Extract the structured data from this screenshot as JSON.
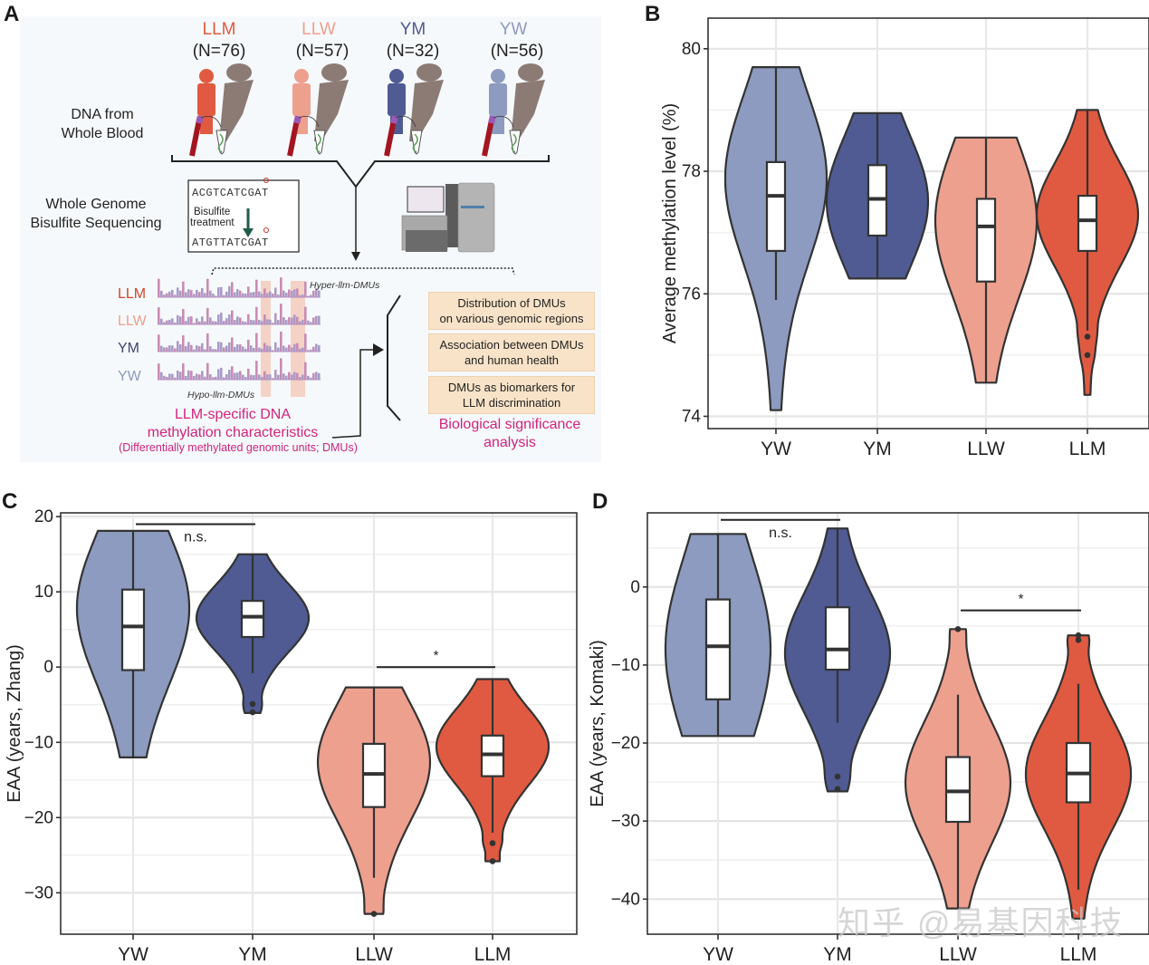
{
  "figure": {
    "panel_letters": {
      "a": "A",
      "b": "B",
      "c": "C",
      "d": "D"
    },
    "colors": {
      "YW": "#8c9bbf",
      "YM": "#4f5b92",
      "LLW": "#eea08f",
      "LLM": "#e05a41",
      "outline": "#333333",
      "grid": "#e6e6e6",
      "magenta": "#d0237f",
      "box_fill": "#f8e3c8"
    },
    "watermark": "知乎 @易基因科技"
  },
  "panelA": {
    "groups": [
      {
        "label": "LLM",
        "n": "(N=76)",
        "color": "#e05a41"
      },
      {
        "label": "LLW",
        "n": "(N=57)",
        "color": "#eea08f"
      },
      {
        "label": "YM",
        "n": "(N=32)",
        "color": "#4f5b92"
      },
      {
        "label": "YW",
        "n": "(N=56)",
        "color": "#8c9bbf"
      }
    ],
    "dna_label_1": "DNA from",
    "dna_label_2": "Whole Blood",
    "wgbs_label_1": "Whole Genome",
    "wgbs_label_2": "Bisulfite Sequencing",
    "seq_before": "ACGTCATCGAT",
    "seq_after": "ATGTTATCGAT",
    "bisulfite_1": "Bisulfite",
    "bisulfite_2": "treatment",
    "tracks": [
      "LLM",
      "LLW",
      "YM",
      "YW"
    ],
    "hyper_label": "Hyper-llm-DMUs",
    "hypo_label": "Hypo-llm-DMUs",
    "llm_specific_1": "LLM-specific DNA",
    "llm_specific_2": "methylation characteristics",
    "llm_specific_3": "(Differentially methylated genomic units; DMUs)",
    "analysis_boxes": [
      {
        "line1": "Distribution of DMUs",
        "line2": "on various genomic regions"
      },
      {
        "line1": "Association between DMUs",
        "line2": "and human health"
      },
      {
        "line1": "DMUs as biomarkers for",
        "line2": "LLM discrimination"
      }
    ],
    "bio_sig_1": "Biological significance",
    "bio_sig_2": "analysis"
  },
  "chart_data": [
    {
      "id": "B",
      "type": "violin",
      "title": "",
      "xlabel": "",
      "ylabel": "Average methylation level (%)",
      "categories": [
        "YW",
        "YM",
        "LLW",
        "LLM"
      ],
      "ylim": [
        73.8,
        80.5
      ],
      "yticks": [
        74,
        76,
        78,
        80
      ],
      "grid": true,
      "series": [
        {
          "name": "YW",
          "min": 74.1,
          "q1": 76.7,
          "median": 77.6,
          "q3": 78.15,
          "max": 79.7,
          "whisker_low": 75.9,
          "whisker_high": 79.7,
          "outliers": [],
          "density_peak": 77.9
        },
        {
          "name": "YM",
          "min": 76.25,
          "q1": 76.95,
          "median": 77.55,
          "q3": 78.1,
          "max": 78.95,
          "whisker_low": 76.25,
          "whisker_high": 78.95,
          "outliers": [],
          "density_peak": 77.5
        },
        {
          "name": "LLW",
          "min": 74.55,
          "q1": 76.2,
          "median": 77.1,
          "q3": 77.55,
          "max": 78.55,
          "whisker_low": 74.55,
          "whisker_high": 78.55,
          "outliers": [],
          "density_peak": 77.2
        },
        {
          "name": "LLM",
          "min": 74.35,
          "q1": 76.7,
          "median": 77.2,
          "q3": 77.6,
          "max": 79.0,
          "whisker_low": 75.4,
          "whisker_high": 79.0,
          "outliers": [
            75.3,
            75.0
          ],
          "density_peak": 77.3
        }
      ],
      "annotations": []
    },
    {
      "id": "C",
      "type": "violin",
      "title": "",
      "xlabel": "",
      "ylabel": "EAA (years, Zhang)",
      "categories": [
        "YW",
        "YM",
        "LLW",
        "LLM"
      ],
      "ylim": [
        -35.5,
        20.5
      ],
      "yticks": [
        -30,
        -20,
        -10,
        0,
        10,
        20
      ],
      "grid": true,
      "series": [
        {
          "name": "YW",
          "min": -12,
          "q1": -0.4,
          "median": 5.4,
          "q3": 10.3,
          "max": 18.1,
          "whisker_low": -12,
          "whisker_high": 18.1,
          "outliers": [],
          "density_peak": 8
        },
        {
          "name": "YM",
          "min": -6.1,
          "q1": 4.0,
          "median": 6.7,
          "q3": 8.8,
          "max": 15.0,
          "whisker_low": -0.8,
          "whisker_high": 15.0,
          "outliers": [
            -4.9,
            -6.0
          ],
          "density_peak": 6.5
        },
        {
          "name": "LLW",
          "min": -32.8,
          "q1": -18.6,
          "median": -14.2,
          "q3": -10.2,
          "max": -2.7,
          "whisker_low": -28.0,
          "whisker_high": -2.7,
          "outliers": [
            -32.8
          ],
          "density_peak": -12.5
        },
        {
          "name": "LLM",
          "min": -25.8,
          "q1": -14.5,
          "median": -11.6,
          "q3": -9.1,
          "max": -1.6,
          "whisker_low": -22.0,
          "whisker_high": -1.6,
          "outliers": [
            -23.4,
            -25.8
          ],
          "density_peak": -10.5
        }
      ],
      "annotations": [
        {
          "from": "YW",
          "to": "YM",
          "y": 19.0,
          "label": "n.s."
        },
        {
          "from": "LLW",
          "to": "LLM",
          "y": 0.0,
          "label": "*"
        }
      ]
    },
    {
      "id": "D",
      "type": "violin",
      "title": "",
      "xlabel": "",
      "ylabel": "EAA (years, Komaki)",
      "categories": [
        "YW",
        "YM",
        "LLW",
        "LLM"
      ],
      "ylim": [
        -44.5,
        9.5
      ],
      "yticks": [
        -40,
        -30,
        -20,
        -10,
        0
      ],
      "grid": true,
      "series": [
        {
          "name": "YW",
          "min": -19.1,
          "q1": -14.4,
          "median": -7.6,
          "q3": -1.6,
          "max": 6.8,
          "whisker_low": -19.1,
          "whisker_high": 6.8,
          "outliers": [],
          "density_peak": -8
        },
        {
          "name": "YM",
          "min": -26.2,
          "q1": -10.6,
          "median": -8.0,
          "q3": -2.6,
          "max": 7.5,
          "whisker_low": -17.4,
          "whisker_high": 7.5,
          "outliers": [
            -24.3,
            -25.9
          ],
          "density_peak": -8.5
        },
        {
          "name": "LLW",
          "min": -41.2,
          "q1": -30.1,
          "median": -26.2,
          "q3": -21.8,
          "max": -5.4,
          "whisker_low": -41.2,
          "whisker_high": -13.8,
          "outliers": [
            -5.4
          ],
          "density_peak": -25
        },
        {
          "name": "LLM",
          "min": -42.5,
          "q1": -27.6,
          "median": -23.9,
          "q3": -20.0,
          "max": -6.2,
          "whisker_low": -38.8,
          "whisker_high": -12.4,
          "outliers": [
            -6.2,
            -6.8
          ],
          "density_peak": -24
        }
      ],
      "annotations": [
        {
          "from": "YW",
          "to": "YM",
          "y": 8.6,
          "label": "n.s."
        },
        {
          "from": "LLW",
          "to": "LLM",
          "y": -3.0,
          "label": "*"
        }
      ]
    }
  ]
}
